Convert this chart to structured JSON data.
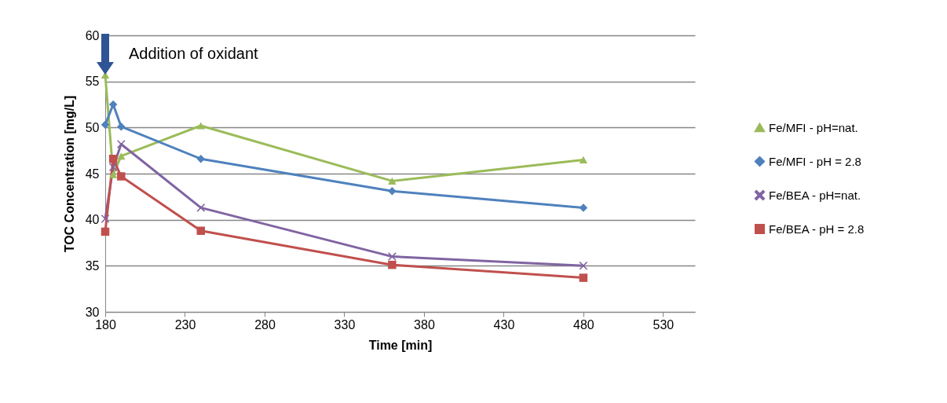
{
  "chart_data": {
    "type": "line",
    "xlabel": "Time [min]",
    "ylabel": "TOC Concentration [mg/L]",
    "x": [
      180,
      185,
      190,
      240,
      360,
      480
    ],
    "xlim": [
      180,
      550
    ],
    "xticks": [
      180,
      230,
      280,
      330,
      380,
      430,
      480,
      530
    ],
    "ylim": [
      30,
      60
    ],
    "yticks": [
      30,
      35,
      40,
      45,
      50,
      55,
      60
    ],
    "grid": "y",
    "legend": "right",
    "line_style": "solid",
    "annotations": [
      "Addition of oxidant"
    ],
    "series": [
      {
        "name": "Fe/MFI - pH=nat.",
        "color": "#9bbb59",
        "marker": "triangle",
        "values": [
          55.7,
          44.9,
          46.9,
          50.2,
          44.2,
          46.5
        ]
      },
      {
        "name": "Fe/MFI - pH = 2.8",
        "color": "#4f81bd",
        "marker": "diamond",
        "values": [
          50.3,
          52.5,
          50.1,
          46.6,
          43.1,
          41.3
        ]
      },
      {
        "name": "Fe/BEA - pH=nat.",
        "color": "#8064a2",
        "marker": "cross",
        "values": [
          40.1,
          45.7,
          48.2,
          41.3,
          36.0,
          35.0
        ]
      },
      {
        "name": "Fe/BEA - pH = 2.8",
        "color": "#c0504d",
        "marker": "square",
        "values": [
          38.7,
          46.6,
          44.7,
          38.8,
          35.1,
          33.7
        ]
      }
    ]
  }
}
